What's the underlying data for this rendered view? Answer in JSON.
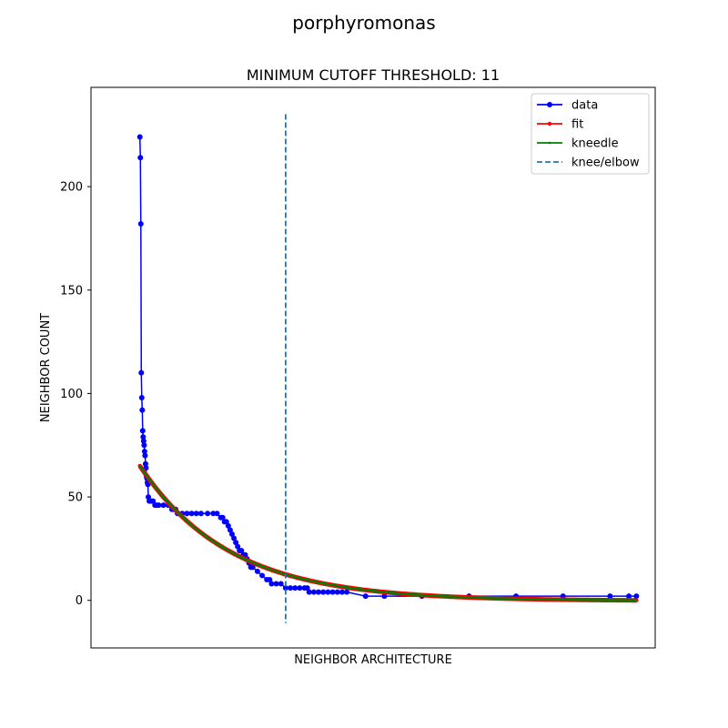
{
  "chart_data": {
    "type": "line",
    "suptitle": "porphyromonas",
    "title": "MINIMUM CUTOFF THRESHOLD: 11",
    "xlabel": "NEIGHBOR ARCHITECTURE",
    "ylabel": "NEIGHBOR COUNT",
    "xticks_visible": false,
    "ylim": [
      -23,
      248
    ],
    "yticks": [
      0,
      50,
      100,
      150,
      200
    ],
    "grid": false,
    "legend_position": "top-right",
    "colors": {
      "data": "#0000ff",
      "fit": "#ff0000",
      "kneedle": "#008000",
      "knee": "#1f77b4"
    },
    "legend": [
      {
        "label": "data",
        "style": "data"
      },
      {
        "label": "fit",
        "style": "fit"
      },
      {
        "label": "kneedle",
        "style": "kneedle"
      },
      {
        "label": "knee/elbow",
        "style": "knee"
      }
    ],
    "data_series": {
      "name": "data",
      "x": [
        0,
        0.5,
        1,
        1.5,
        2,
        2.5,
        3,
        3.5,
        4,
        4.5,
        5,
        5.5,
        6,
        6.5,
        7,
        7.5,
        8,
        8.5,
        9,
        10,
        11,
        12,
        14,
        16,
        18,
        20,
        25,
        30,
        34,
        36,
        38,
        40,
        45,
        50,
        55,
        60,
        65,
        72,
        78,
        82,
        86,
        88,
        90,
        92,
        94,
        96,
        98,
        100,
        102,
        104,
        106,
        108,
        110,
        112,
        114,
        116,
        118,
        120,
        125,
        130,
        135,
        138,
        140,
        145,
        150,
        155,
        160,
        165,
        170,
        175,
        178,
        180,
        185,
        190,
        195,
        200,
        205,
        210,
        215,
        220,
        240,
        260,
        300,
        350,
        400,
        450,
        500,
        520,
        528
      ],
      "y": [
        224,
        214,
        182,
        110,
        98,
        92,
        82,
        79,
        77,
        75,
        72,
        70,
        66,
        64,
        60,
        59,
        57,
        56,
        50,
        48,
        48,
        48,
        48,
        46,
        46,
        46,
        46,
        46,
        44,
        44,
        44,
        42,
        42,
        42,
        42,
        42,
        42,
        42,
        42,
        42,
        40,
        40,
        38,
        38,
        36,
        34,
        32,
        30,
        28,
        26,
        24,
        24,
        22,
        22,
        20,
        18,
        16,
        16,
        14,
        12,
        10,
        10,
        8,
        8,
        8,
        6,
        6,
        6,
        6,
        6,
        6,
        4,
        4,
        4,
        4,
        4,
        4,
        4,
        4,
        4,
        2,
        2,
        2,
        2,
        2,
        2,
        2,
        2,
        2
      ]
    },
    "fit_series": {
      "name": "fit",
      "x0": 0,
      "x1": 528,
      "y_start": 65,
      "y_end": 0,
      "decay": 0.0105
    },
    "kneedle_series": {
      "name": "kneedle",
      "x0": 0,
      "x1": 528,
      "y_start": 65,
      "y_end": 0,
      "decay": 0.0105
    },
    "knee_x": 155,
    "knee_y_range": [
      -11,
      235
    ]
  }
}
